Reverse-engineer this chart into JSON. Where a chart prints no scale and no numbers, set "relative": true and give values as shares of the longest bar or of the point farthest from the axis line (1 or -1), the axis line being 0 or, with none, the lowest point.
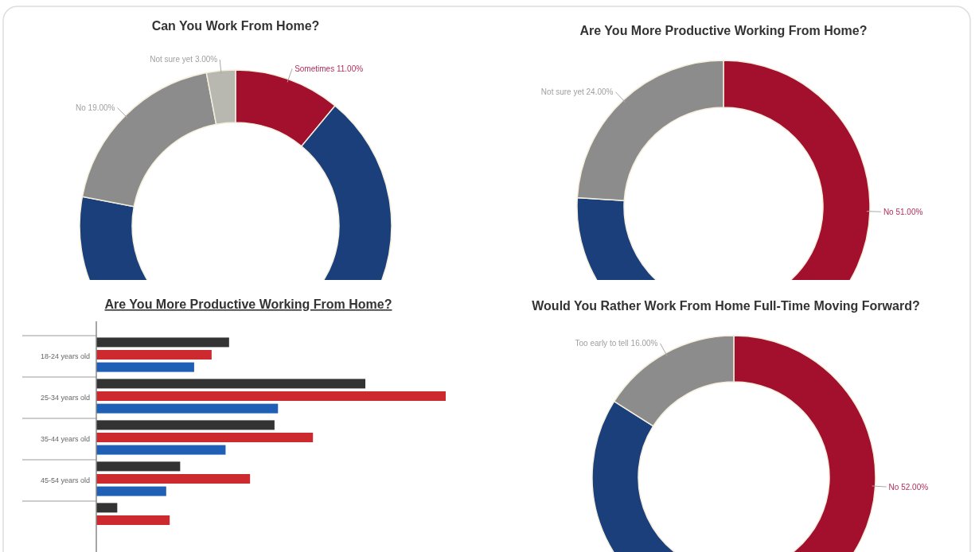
{
  "chart_data": [
    {
      "type": "donut",
      "title": "Can You Work From Home?",
      "categories": [
        "Sometimes",
        null,
        "No",
        "Not sure yet"
      ],
      "values": [
        11,
        67,
        19,
        3
      ],
      "value_labels": [
        "11.00%",
        null,
        "19.00%",
        "3.00%"
      ],
      "colors": [
        "#a3102e",
        "#1b3f7a",
        "#8c8c8c",
        "#b8b8b0"
      ]
    },
    {
      "type": "donut",
      "title": "Are You More Productive Working From Home?",
      "categories": [
        "No",
        null,
        "Not sure yet"
      ],
      "values": [
        51,
        25,
        24
      ],
      "value_labels": [
        "51.00%",
        null,
        "24.00%"
      ],
      "colors": [
        "#a3102e",
        "#1b3f7a",
        "#8c8c8c"
      ]
    },
    {
      "type": "bar",
      "orientation": "horizontal",
      "relative": true,
      "title": "Are You More Productive Working From Home?",
      "categories": [
        "18-24 years old",
        "25-34 years old",
        "35-44 years old",
        "45-54 years old",
        null
      ],
      "series": [
        {
          "color": "#333333",
          "values": [
            0.38,
            0.77,
            0.51,
            0.24,
            0.06
          ]
        },
        {
          "color": "#cc2a2f",
          "values": [
            0.33,
            1,
            0.62,
            0.44,
            0.21
          ]
        },
        {
          "color": "#1f5fb5",
          "values": [
            0.28,
            0.52,
            0.37,
            0.2,
            null
          ]
        }
      ]
    },
    {
      "type": "donut",
      "title": "Would You Rather Work From Home Full-Time Moving Forward?",
      "categories": [
        "No",
        null,
        "Too early to tell"
      ],
      "values": [
        52,
        32,
        16
      ],
      "value_labels": [
        "52.00%",
        null,
        "16.00%"
      ],
      "colors": [
        "#a3102e",
        "#1b3f7a",
        "#8c8c8c"
      ]
    }
  ]
}
